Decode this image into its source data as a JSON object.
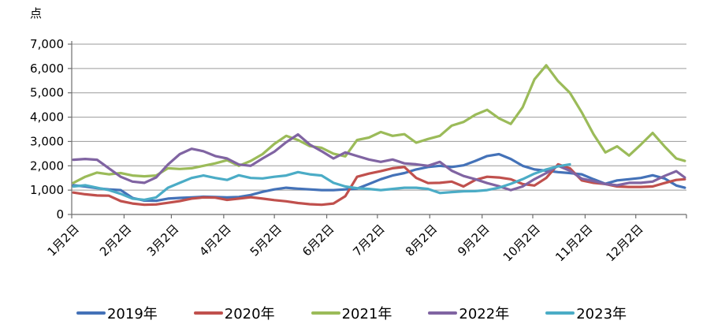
{
  "chart_data": {
    "type": "line",
    "title": "",
    "ylabel": "点",
    "xlabel": "",
    "ylim": [
      0,
      7000
    ],
    "y_tick_step": 1000,
    "grid": true,
    "legend_position": "bottom",
    "x_axis_note": "weekly samples, day-of-year 2 + 7k (Jan 2 through Dec 31)",
    "y_tick_labels": [
      "0",
      "1,000",
      "2,000",
      "3,000",
      "4,000",
      "5,000",
      "6,000",
      "7,000"
    ],
    "x_tick_labels": [
      "1月2日",
      "2月2日",
      "3月2日",
      "4月2日",
      "5月2日",
      "6月2日",
      "7月2日",
      "8月2日",
      "9月2日",
      "10月2日",
      "11月2日",
      "12月2日"
    ],
    "series": [
      {
        "name": "2019年",
        "color": "#4472B8",
        "values": [
          1200,
          1150,
          1080,
          1030,
          1000,
          680,
          570,
          560,
          650,
          680,
          700,
          730,
          720,
          700,
          720,
          800,
          930,
          1030,
          1100,
          1060,
          1030,
          1000,
          1000,
          1030,
          1060,
          1250,
          1450,
          1600,
          1700,
          1850,
          1950,
          2000,
          1950,
          2020,
          2200,
          2400,
          2480,
          2280,
          2000,
          1850,
          1800,
          1740,
          1700,
          1650,
          1450,
          1260,
          1400,
          1450,
          1500,
          1610,
          1480,
          1190,
          1100
        ]
      },
      {
        "name": "2020年",
        "color": "#C0504D",
        "values": [
          900,
          830,
          780,
          770,
          550,
          450,
          400,
          410,
          480,
          550,
          650,
          700,
          690,
          600,
          650,
          710,
          650,
          590,
          540,
          470,
          420,
          400,
          450,
          750,
          1550,
          1680,
          1780,
          1900,
          1950,
          1500,
          1290,
          1300,
          1350,
          1150,
          1420,
          1550,
          1520,
          1450,
          1250,
          1190,
          1500,
          2060,
          1900,
          1400,
          1300,
          1250,
          1150,
          1130,
          1130,
          1150,
          1290,
          1420,
          1450
        ]
      },
      {
        "name": "2021年",
        "color": "#9BBB59",
        "values": [
          1300,
          1550,
          1720,
          1650,
          1700,
          1600,
          1570,
          1600,
          1900,
          1870,
          1900,
          2000,
          2100,
          2230,
          2000,
          2200,
          2480,
          2900,
          3230,
          3060,
          2810,
          2740,
          2500,
          2390,
          3060,
          3160,
          3390,
          3230,
          3300,
          2950,
          3100,
          3230,
          3650,
          3800,
          4100,
          4300,
          3950,
          3720,
          4400,
          5550,
          6130,
          5480,
          5000,
          4200,
          3300,
          2550,
          2800,
          2420,
          2870,
          3350,
          2800,
          2300,
          2200
        ]
      },
      {
        "name": "2022年",
        "color": "#8064A2",
        "values": [
          2250,
          2280,
          2250,
          1900,
          1550,
          1350,
          1300,
          1520,
          2050,
          2480,
          2700,
          2600,
          2400,
          2300,
          2050,
          2000,
          2300,
          2580,
          2970,
          3290,
          2870,
          2600,
          2300,
          2550,
          2400,
          2260,
          2160,
          2260,
          2100,
          2060,
          2000,
          2160,
          1800,
          1580,
          1450,
          1290,
          1160,
          1000,
          1150,
          1450,
          1700,
          2000,
          1800,
          1470,
          1370,
          1250,
          1200,
          1300,
          1300,
          1350,
          1580,
          1780,
          1520
        ]
      },
      {
        "name": "2023年",
        "color": "#4BACC6",
        "values": [
          1150,
          1200,
          1100,
          1000,
          850,
          650,
          600,
          700,
          1100,
          1300,
          1500,
          1600,
          1500,
          1420,
          1610,
          1500,
          1480,
          1550,
          1600,
          1740,
          1650,
          1600,
          1300,
          1150,
          1080,
          1050,
          1000,
          1050,
          1100,
          1100,
          1050,
          880,
          920,
          950,
          960,
          1000,
          1100,
          1260,
          1450,
          1680,
          1850,
          1980,
          2060,
          null,
          null,
          null,
          null,
          null,
          null,
          null,
          null,
          null,
          null
        ]
      }
    ]
  }
}
